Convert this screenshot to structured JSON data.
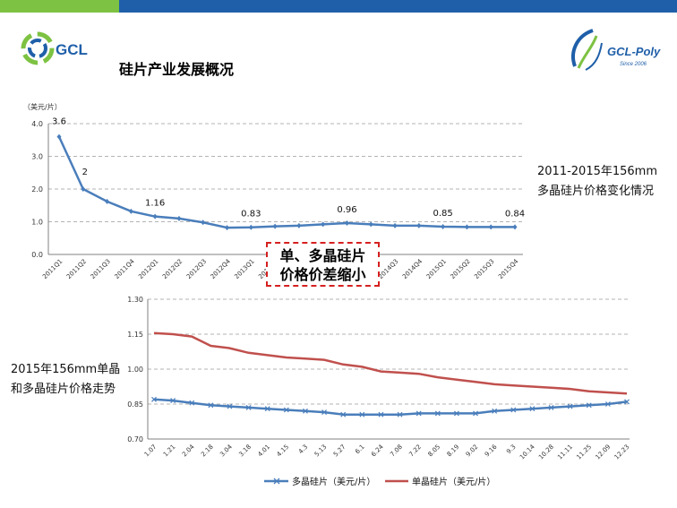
{
  "header": {
    "title": "硅片产业发展概况",
    "logo_left_text": "GCL",
    "logo_right_text": "GCL-Poly",
    "logo_right_sub": "Since 2006"
  },
  "notes": {
    "top_line1": "2011-2015年156mm",
    "top_line2": "多晶硅片价格变化情况",
    "bottom_line1": "2015年156mm单晶",
    "bottom_line2": "和多晶硅片价格走势"
  },
  "callout": {
    "line1": "单、多晶硅片",
    "line2": "价格价差缩小"
  },
  "colors": {
    "poly": "#4a7ebb",
    "mono": "#c0504d",
    "top_green": "#7dc242",
    "top_blue": "#1f5fa9",
    "callout_border": "#d62020"
  },
  "chart_data": [
    {
      "type": "line",
      "unit_label": "（美元/片）",
      "categories": [
        "2011Q1",
        "2011Q2",
        "2011Q3",
        "2011Q4",
        "2012Q1",
        "2012Q2",
        "2012Q3",
        "2012Q4",
        "2013Q1",
        "2013Q2",
        "2013Q3",
        "2013Q4",
        "2014Q1",
        "2014Q2",
        "2014Q3",
        "2014Q4",
        "2015Q1",
        "2015Q2",
        "2015Q3",
        "2015Q4"
      ],
      "series": [
        {
          "values": [
            3.6,
            2.0,
            1.62,
            1.32,
            1.16,
            1.1,
            0.98,
            0.82,
            0.83,
            0.86,
            0.88,
            0.92,
            0.96,
            0.92,
            0.88,
            0.88,
            0.85,
            0.84,
            0.84,
            0.84
          ]
        }
      ],
      "data_labels": [
        {
          "index": 0,
          "text": "3.6"
        },
        {
          "index": 1,
          "text": "2"
        },
        {
          "index": 4,
          "text": "1.16"
        },
        {
          "index": 8,
          "text": "0.83"
        },
        {
          "index": 12,
          "text": "0.96"
        },
        {
          "index": 16,
          "text": "0.85"
        },
        {
          "index": 19,
          "text": "0.84"
        }
      ],
      "yticks": [
        "0.0",
        "1.0",
        "2.0",
        "3.0",
        "4.0"
      ],
      "ylim": [
        0,
        4
      ],
      "grid": true
    },
    {
      "type": "line",
      "x": [
        "1.07",
        "1.21",
        "2.04",
        "2.18",
        "3.04",
        "3.18",
        "4.01",
        "4.15",
        "4.3",
        "5.13",
        "5.27",
        "6.1",
        "6.24",
        "7.08",
        "7.22",
        "8.05",
        "8.19",
        "9.02",
        "9.16",
        "9.3",
        "10.14",
        "10.28",
        "11.11",
        "11.25",
        "12.09",
        "12.23"
      ],
      "series": [
        {
          "name": "多晶硅片（美元/片）",
          "marker": "x",
          "values": [
            0.87,
            0.865,
            0.855,
            0.845,
            0.84,
            0.835,
            0.83,
            0.825,
            0.82,
            0.815,
            0.805,
            0.805,
            0.805,
            0.805,
            0.81,
            0.81,
            0.81,
            0.81,
            0.82,
            0.825,
            0.83,
            0.835,
            0.84,
            0.845,
            0.85,
            0.86
          ]
        },
        {
          "name": "单晶硅片（美元/片）",
          "marker": "none",
          "values": [
            1.155,
            1.15,
            1.14,
            1.1,
            1.09,
            1.07,
            1.06,
            1.05,
            1.045,
            1.04,
            1.02,
            1.01,
            0.99,
            0.985,
            0.98,
            0.965,
            0.955,
            0.945,
            0.935,
            0.93,
            0.925,
            0.92,
            0.915,
            0.905,
            0.9,
            0.895
          ]
        }
      ],
      "yticks": [
        "0.70",
        "0.85",
        "1.00",
        "1.15",
        "1.30"
      ],
      "ylim": [
        0.7,
        1.3
      ],
      "grid": true,
      "legend": "bottom"
    }
  ]
}
